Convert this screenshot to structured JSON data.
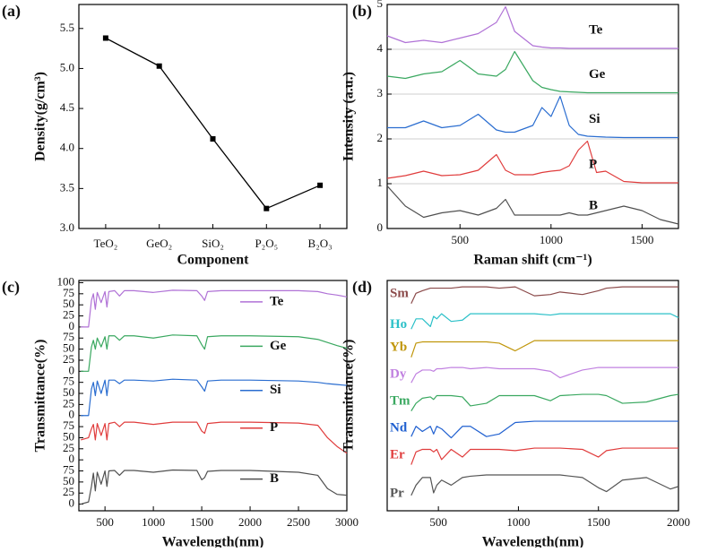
{
  "chart_data": [
    {
      "type": "line",
      "panel_label": "(a)",
      "markers": true,
      "color": "#000000",
      "x_label": "Component",
      "y_label": "Density(g/cm³)",
      "categories": [
        "TeO₂",
        "GeO₂",
        "SiO₂",
        "P₂O₅",
        "B₂O₃"
      ],
      "values": [
        5.38,
        5.03,
        4.12,
        3.25,
        3.54
      ],
      "ylim": [
        3.0,
        5.8
      ],
      "yticks": [
        {
          "value": 3,
          "label": "3.0"
        },
        3.5,
        {
          "value": 4,
          "label": "4.0"
        },
        4.5,
        {
          "value": 5,
          "label": "5.0"
        },
        5.5
      ]
    },
    {
      "type": "line",
      "panel_label": "(b)",
      "grid": true,
      "legend": "inline-right",
      "x_label": "Raman shift (cm⁻¹)",
      "y_label": "Intensity (a.u.)",
      "x": [
        100,
        200,
        300,
        400,
        500,
        600,
        700,
        750,
        800,
        900,
        950,
        1000,
        1050,
        1100,
        1150,
        1200,
        1250,
        1300,
        1400,
        1500,
        1600,
        1700
      ],
      "xlim": [
        100,
        1700
      ],
      "xticks": [
        500,
        1000,
        1500
      ],
      "ylim": [
        0,
        5
      ],
      "yticks": [
        0,
        1,
        2,
        3,
        4,
        5
      ],
      "series": [
        {
          "name": "Te",
          "color": "#b072d6",
          "values": [
            4.3,
            4.15,
            4.2,
            4.15,
            4.25,
            4.35,
            4.6,
            4.95,
            4.4,
            4.08,
            4.05,
            4.03,
            4.03,
            4.02,
            4.02,
            4.02,
            4.02,
            4.02,
            4.02,
            4.02,
            4.02,
            4.02
          ]
        },
        {
          "name": "Ge",
          "color": "#3aa860",
          "values": [
            3.4,
            3.35,
            3.45,
            3.5,
            3.75,
            3.45,
            3.4,
            3.55,
            3.95,
            3.3,
            3.15,
            3.1,
            3.06,
            3.05,
            3.04,
            3.03,
            3.03,
            3.03,
            3.03,
            3.03,
            3.03,
            3.03
          ]
        },
        {
          "name": "Si",
          "color": "#2a6dd0",
          "values": [
            2.25,
            2.25,
            2.4,
            2.25,
            2.3,
            2.55,
            2.2,
            2.15,
            2.15,
            2.3,
            2.7,
            2.5,
            2.95,
            2.3,
            2.1,
            2.06,
            2.05,
            2.04,
            2.03,
            2.03,
            2.03,
            2.03
          ]
        },
        {
          "name": "P",
          "color": "#e03c3c",
          "values": [
            1.12,
            1.18,
            1.28,
            1.18,
            1.2,
            1.3,
            1.65,
            1.3,
            1.2,
            1.2,
            1.25,
            1.28,
            1.3,
            1.4,
            1.75,
            1.95,
            1.25,
            1.28,
            1.05,
            1.02,
            1.02,
            1.02
          ]
        },
        {
          "name": "B",
          "color": "#505050",
          "values": [
            0.95,
            0.5,
            0.25,
            0.35,
            0.4,
            0.3,
            0.45,
            0.65,
            0.3,
            0.3,
            0.3,
            0.3,
            0.3,
            0.35,
            0.3,
            0.3,
            0.35,
            0.4,
            0.5,
            0.4,
            0.2,
            0.1
          ]
        }
      ]
    },
    {
      "type": "line",
      "panel_label": "(c)",
      "legend": "inline-line",
      "x_label": "Wavelength(nm)",
      "y_label": "Transmittance(%)",
      "x": [
        250,
        330,
        360,
        380,
        400,
        420,
        460,
        500,
        520,
        540,
        600,
        650,
        700,
        800,
        1000,
        1200,
        1450,
        1500,
        1530,
        1560,
        1700,
        2000,
        2500,
        2700,
        2800,
        2900,
        3000
      ],
      "xlim": [
        230,
        3000
      ],
      "xticks": [
        500,
        1000,
        1500,
        2000,
        2500,
        3000
      ],
      "ylim": [
        -15,
        505
      ],
      "yticks": [
        0,
        25,
        50,
        75,
        {
          "value": 100,
          "label": "0"
        },
        {
          "value": 125,
          "label": "25"
        },
        {
          "value": 150,
          "label": "50"
        },
        {
          "value": 175,
          "label": "75"
        },
        {
          "value": 200,
          "label": "0"
        },
        {
          "value": 225,
          "label": "25"
        },
        {
          "value": 250,
          "label": "50"
        },
        {
          "value": 275,
          "label": "75"
        },
        {
          "value": 300,
          "label": "0"
        },
        {
          "value": 325,
          "label": "25"
        },
        {
          "value": 350,
          "label": "50"
        },
        {
          "value": 375,
          "label": "75"
        },
        {
          "value": 400,
          "label": "0"
        },
        {
          "value": 425,
          "label": "25"
        },
        {
          "value": 450,
          "label": "50"
        },
        {
          "value": 475,
          "label": "75"
        },
        {
          "value": 500,
          "label": "100"
        }
      ],
      "series": [
        {
          "name": "Te",
          "color": "#b072d6",
          "values": [
            400,
            400,
            460,
            475,
            440,
            478,
            455,
            480,
            445,
            480,
            482,
            470,
            482,
            482,
            478,
            483,
            482,
            470,
            460,
            480,
            482,
            482,
            482,
            480,
            475,
            472,
            468
          ]
        },
        {
          "name": "Ge",
          "color": "#3aa860",
          "values": [
            300,
            300,
            355,
            370,
            350,
            375,
            355,
            378,
            350,
            380,
            380,
            370,
            380,
            380,
            375,
            382,
            380,
            360,
            350,
            378,
            380,
            380,
            378,
            372,
            365,
            358,
            352
          ]
        },
        {
          "name": "Si",
          "color": "#2a6dd0",
          "values": [
            200,
            200,
            260,
            275,
            245,
            278,
            250,
            280,
            245,
            280,
            280,
            272,
            280,
            280,
            278,
            282,
            280,
            265,
            255,
            278,
            280,
            280,
            278,
            275,
            272,
            270,
            268
          ]
        },
        {
          "name": "P",
          "color": "#e03c3c",
          "values": [
            145,
            150,
            170,
            180,
            145,
            182,
            155,
            182,
            145,
            182,
            185,
            175,
            185,
            185,
            180,
            185,
            185,
            165,
            160,
            182,
            185,
            185,
            183,
            178,
            150,
            130,
            115
          ]
        },
        {
          "name": "B",
          "color": "#505050",
          "values": [
            0,
            5,
            40,
            70,
            30,
            72,
            45,
            75,
            40,
            75,
            76,
            65,
            76,
            76,
            72,
            77,
            76,
            55,
            60,
            74,
            76,
            76,
            72,
            65,
            35,
            22,
            20
          ]
        }
      ]
    },
    {
      "type": "line",
      "panel_label": "(d)",
      "legend": "inline-left",
      "x_label": "Wavelength(nm)",
      "y_label": "Transmittance(%)",
      "x": [
        330,
        360,
        400,
        450,
        470,
        490,
        520,
        580,
        650,
        700,
        800,
        880,
        980,
        1100,
        1200,
        1260,
        1400,
        1500,
        1550,
        1650,
        1800,
        1950,
        2000
      ],
      "xlim": [
        180,
        2000
      ],
      "xticks": [
        500,
        1000,
        1500,
        2000
      ],
      "ylim": [
        0,
        9
      ],
      "series": [
        {
          "name": "Sm",
          "color": "#8b4a4a",
          "values": [
            8.1,
            8.5,
            8.6,
            8.7,
            8.7,
            8.7,
            8.7,
            8.7,
            8.75,
            8.75,
            8.75,
            8.7,
            8.75,
            8.4,
            8.45,
            8.55,
            8.45,
            8.6,
            8.7,
            8.75,
            8.75,
            8.75,
            8.75
          ]
        },
        {
          "name": "Ho",
          "color": "#2bc0c8",
          "values": [
            7.1,
            7.5,
            7.5,
            7.2,
            7.6,
            7.5,
            7.7,
            7.4,
            7.45,
            7.7,
            7.7,
            7.7,
            7.7,
            7.7,
            7.65,
            7.7,
            7.7,
            7.7,
            7.7,
            7.7,
            7.7,
            7.7,
            7.55
          ]
        },
        {
          "name": "Yb",
          "color": "#c0960a",
          "values": [
            6.0,
            6.55,
            6.6,
            6.6,
            6.6,
            6.6,
            6.6,
            6.6,
            6.6,
            6.6,
            6.6,
            6.55,
            6.25,
            6.65,
            6.65,
            6.65,
            6.65,
            6.65,
            6.65,
            6.65,
            6.65,
            6.65,
            6.65
          ]
        },
        {
          "name": "Dy",
          "color": "#c080e0",
          "values": [
            5.0,
            5.35,
            5.5,
            5.5,
            5.45,
            5.55,
            5.55,
            5.6,
            5.6,
            5.55,
            5.6,
            5.55,
            5.55,
            5.55,
            5.45,
            5.2,
            5.5,
            5.6,
            5.6,
            5.6,
            5.6,
            5.6,
            5.6
          ]
        },
        {
          "name": "Tm",
          "color": "#3aa860",
          "values": [
            3.9,
            4.2,
            4.4,
            4.45,
            4.35,
            4.5,
            4.5,
            4.5,
            4.45,
            4.1,
            4.2,
            4.5,
            4.5,
            4.5,
            4.3,
            4.5,
            4.55,
            4.55,
            4.5,
            4.2,
            4.25,
            4.5,
            4.55
          ]
        },
        {
          "name": "Nd",
          "color": "#2060d0",
          "values": [
            2.9,
            3.3,
            3.1,
            3.3,
            3.0,
            3.3,
            3.2,
            2.85,
            3.3,
            3.3,
            2.9,
            3.0,
            3.45,
            3.5,
            3.5,
            3.5,
            3.5,
            3.5,
            3.5,
            3.5,
            3.5,
            3.5,
            3.5
          ]
        },
        {
          "name": "Er",
          "color": "#e03c3c",
          "values": [
            1.8,
            2.3,
            2.4,
            2.4,
            2.3,
            2.4,
            2.0,
            2.4,
            2.1,
            2.4,
            2.4,
            2.4,
            2.35,
            2.45,
            2.45,
            2.45,
            2.4,
            2.1,
            2.35,
            2.45,
            2.45,
            2.45,
            2.45
          ]
        },
        {
          "name": "Pr",
          "color": "#555555",
          "values": [
            0.6,
            1.0,
            1.3,
            1.3,
            0.7,
            1.0,
            1.2,
            1.0,
            1.3,
            1.35,
            1.4,
            1.4,
            1.4,
            1.4,
            1.4,
            1.4,
            1.3,
            0.9,
            0.75,
            1.2,
            1.3,
            0.85,
            0.95
          ]
        }
      ]
    }
  ]
}
